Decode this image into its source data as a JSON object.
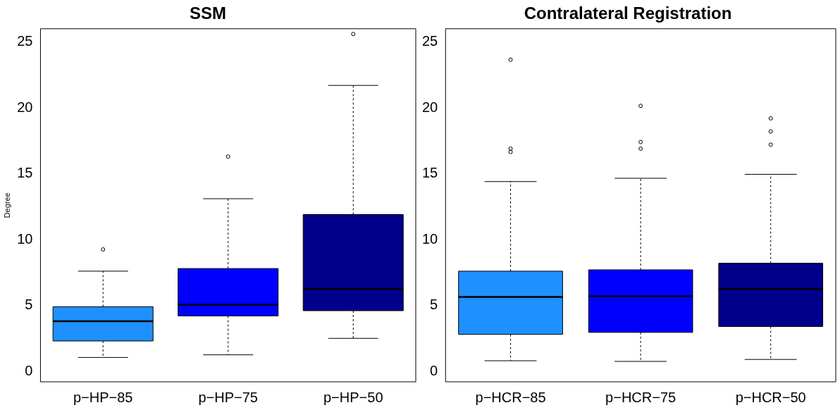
{
  "chart_data": [
    {
      "type": "box",
      "title": "SSM",
      "ylabel": "Degree",
      "categories": [
        "p−HP−85",
        "p−HP−75",
        "p−HP−50"
      ],
      "colors": [
        "#1e90ff",
        "#0000ff",
        "#00008b"
      ],
      "ylim": [
        -0.8,
        26
      ],
      "yticks": [
        0,
        5,
        10,
        15,
        20,
        25
      ],
      "grid": false,
      "boxes": [
        {
          "low": 1.05,
          "q1": 2.3,
          "median": 3.8,
          "q3": 4.9,
          "high": 7.6,
          "outliers": [
            9.25
          ]
        },
        {
          "low": 1.25,
          "q1": 4.2,
          "median": 5.05,
          "q3": 7.8,
          "high": 13.1,
          "outliers": [
            16.3
          ]
        },
        {
          "low": 2.5,
          "q1": 4.6,
          "median": 6.25,
          "q3": 11.9,
          "high": 21.7,
          "outliers": [
            25.6
          ]
        }
      ]
    },
    {
      "type": "box",
      "title": "Contralateral Registration",
      "categories": [
        "p−HCR−85",
        "p−HCR−75",
        "p−HCR−50"
      ],
      "colors": [
        "#1e90ff",
        "#0000ff",
        "#00008b"
      ],
      "ylim": [
        -0.8,
        26
      ],
      "yticks": [
        0,
        5,
        10,
        15,
        20,
        25
      ],
      "grid": false,
      "boxes": [
        {
          "low": 0.8,
          "q1": 2.8,
          "median": 5.65,
          "q3": 7.6,
          "high": 14.4,
          "outliers": [
            16.65,
            16.9,
            23.65
          ]
        },
        {
          "low": 0.75,
          "q1": 2.95,
          "median": 5.7,
          "q3": 7.7,
          "high": 14.65,
          "outliers": [
            16.9,
            17.4,
            20.15
          ]
        },
        {
          "low": 0.9,
          "q1": 3.4,
          "median": 6.25,
          "q3": 8.2,
          "high": 14.95,
          "outliers": [
            17.2,
            18.2,
            19.2
          ]
        }
      ]
    }
  ]
}
